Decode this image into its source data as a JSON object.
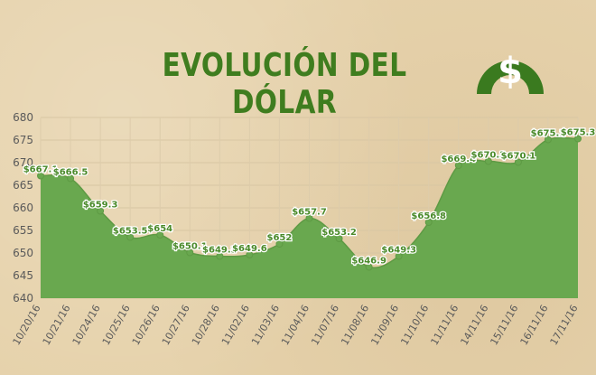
{
  "title": "EVOLUCIÓN DEL DÓLAR",
  "logo": {
    "icon": "dollar-coin-icon",
    "symbol": "$",
    "color": "#3a7a1f"
  },
  "colors": {
    "area": "#69a84f",
    "title": "#3f7d1f",
    "background": "#e6d2ab"
  },
  "chart_data": {
    "type": "area",
    "categories": [
      "10/20/16",
      "10/21/16",
      "10/24/16",
      "10/25/16",
      "10/26/16",
      "10/27/16",
      "10/28/16",
      "11/02/16",
      "11/03/16",
      "11/04/16",
      "11/07/16",
      "11/08/16",
      "11/09/16",
      "11/10/16",
      "11/11/16",
      "14/11/16",
      "15/11/16",
      "16/11/16",
      "17/11/16"
    ],
    "values": [
      667.1,
      666.5,
      659.3,
      653.5,
      654,
      650.1,
      649.3,
      649.6,
      652,
      657.7,
      653.2,
      646.9,
      649.3,
      656.8,
      669.4,
      670.3,
      670.1,
      675.1,
      675.3
    ],
    "labels": [
      "$667.1",
      "$666.5",
      "$659.3",
      "$653.5",
      "$654",
      "$650.1",
      "$649.3",
      "$649.6",
      "$652",
      "$657.7",
      "$653.2",
      "$646.9",
      "$649.3",
      "$656.8",
      "$669.4",
      "$670.3",
      "$670.1",
      "$675.1",
      "$675.3"
    ],
    "yticks": [
      "640",
      "645",
      "650",
      "655",
      "660",
      "665",
      "670",
      "675",
      "680"
    ],
    "ylim": [
      640,
      680
    ],
    "grid": true,
    "legend": "none",
    "xlabel": "",
    "ylabel": ""
  }
}
